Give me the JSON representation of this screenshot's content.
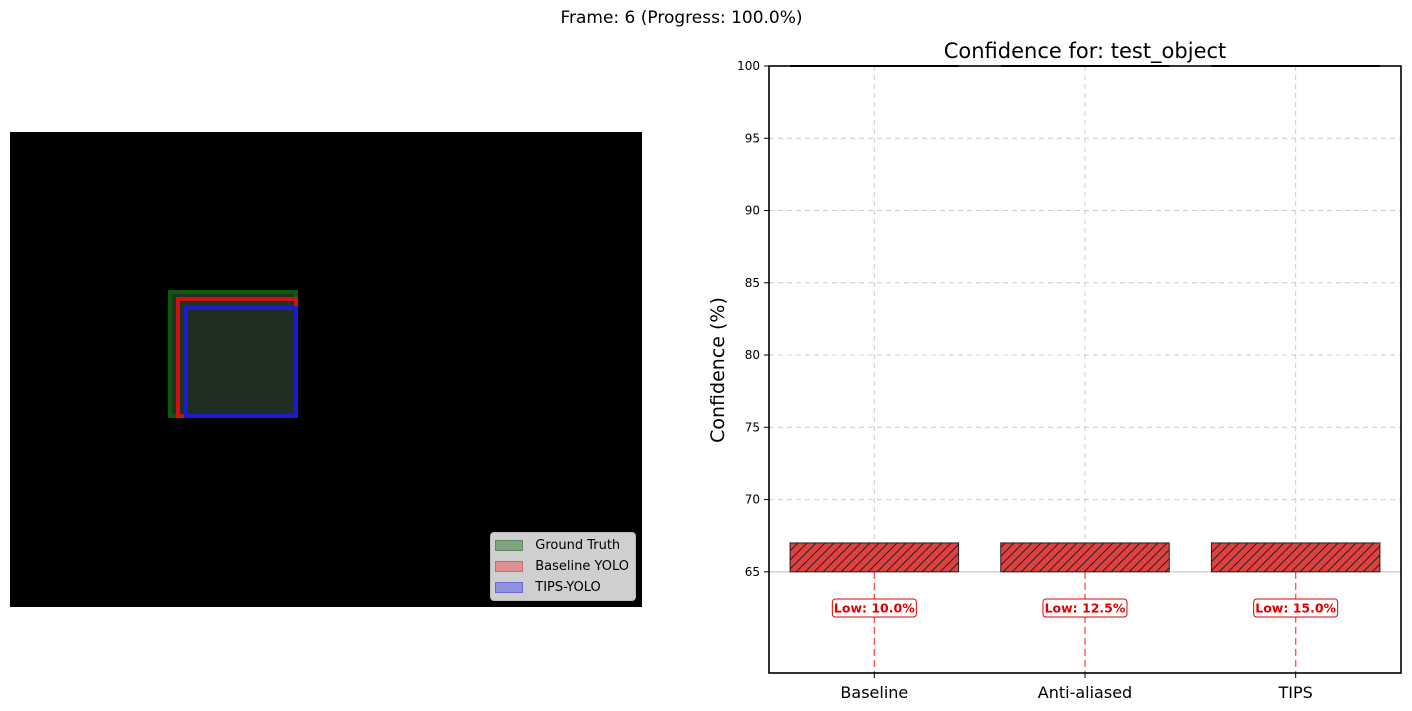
{
  "figure": {
    "suptitle": "Frame: 6 (Progress: 100.0%)"
  },
  "detection_view": {
    "boxes": [
      {
        "name": "ground-truth-box",
        "fill": "#1f3320",
        "stroke": "#0c5a0c"
      },
      {
        "name": "baseline-yolo-box",
        "fill": "none",
        "stroke": "#d11010"
      },
      {
        "name": "tips-yolo-box",
        "fill": "#1f2e20",
        "stroke": "#1c1ccf"
      }
    ],
    "legend": [
      {
        "label": "Ground Truth",
        "color": "#7fa27f",
        "edge": "#5f8a5f"
      },
      {
        "label": "Baseline YOLO",
        "color": "#e09090",
        "edge": "#d06a6a"
      },
      {
        "label": "TIPS-YOLO",
        "color": "#9090e0",
        "edge": "#6a6ad0"
      }
    ]
  },
  "chart_data": {
    "type": "bar",
    "title": "Confidence for: test_object",
    "xlabel": "",
    "ylabel": "Confidence (%)",
    "categories": [
      "Baseline",
      "Anti-aliased",
      "TIPS"
    ],
    "values": [
      67,
      67,
      67
    ],
    "bar_bottom": 65,
    "ylim": [
      58,
      100
    ],
    "yticks": [
      "100",
      "95",
      "90",
      "85",
      "80",
      "75",
      "70",
      "65"
    ],
    "ytick_values": [
      100,
      95,
      90,
      85,
      80,
      75,
      70,
      65
    ],
    "threshold": 65,
    "grid": true,
    "bar_color": "#e04040",
    "hatch": "//",
    "low_labels": [
      "Low: 10.0%",
      "Low: 12.5%",
      "Low: 15.0%"
    ],
    "low_label_value": 62.5,
    "low_label_color": "#dd0000",
    "top_bar_value": 100
  }
}
